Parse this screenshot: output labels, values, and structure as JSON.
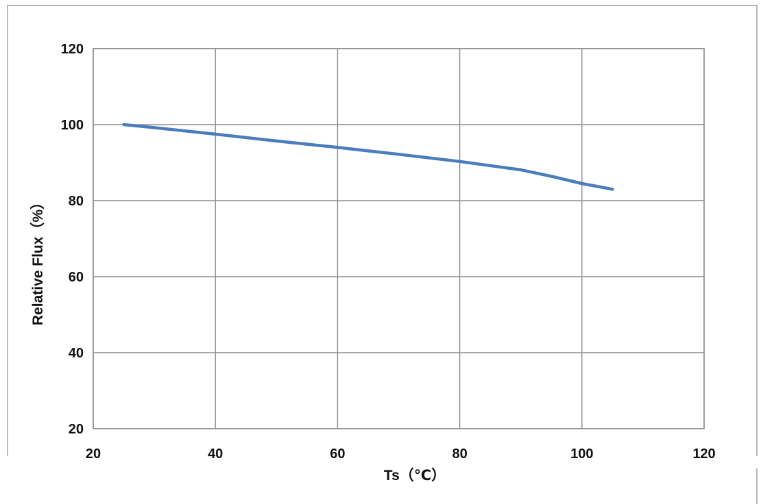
{
  "chart_data": {
    "type": "line",
    "xlabel": "Ts（℃）",
    "ylabel": "Relative Flux（%）",
    "xlim": [
      20,
      120
    ],
    "ylim": [
      20,
      120
    ],
    "x_ticks": [
      "20",
      "40",
      "60",
      "80",
      "100",
      "120"
    ],
    "y_ticks": [
      "20",
      "40",
      "60",
      "80",
      "100",
      "120"
    ],
    "grid": true,
    "legend": "none",
    "series": [
      {
        "color": "#4a7dbd",
        "x": [
          25,
          30,
          40,
          50,
          60,
          70,
          80,
          90,
          95,
          100,
          105
        ],
        "y": [
          100,
          99.2,
          97.5,
          95.7,
          94.0,
          92.2,
          90.3,
          88.1,
          86.4,
          84.5,
          83.0
        ]
      }
    ]
  }
}
